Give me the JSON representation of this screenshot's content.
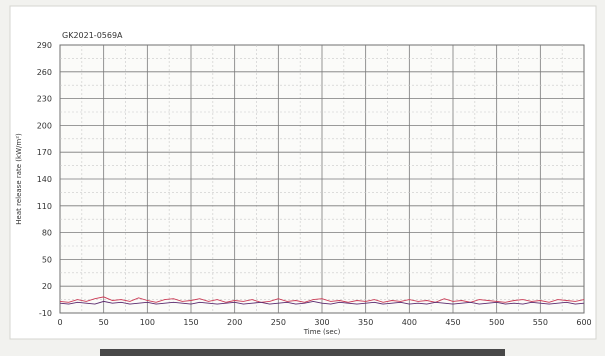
{
  "chart_data": {
    "type": "line",
    "title": "GK2021-0569A",
    "xlabel": "Time (sec)",
    "ylabel": "Heat release rate (kW/m²)",
    "xlim": [
      0,
      600
    ],
    "ylim": [
      -10,
      290
    ],
    "x_ticks": [
      "0",
      "50",
      "100",
      "150",
      "200",
      "250",
      "300",
      "350",
      "400",
      "450",
      "500",
      "550",
      "600"
    ],
    "y_ticks": [
      "290",
      "260",
      "230",
      "200",
      "170",
      "140",
      "110",
      "80",
      "50",
      "20",
      "-10"
    ],
    "grid": true,
    "series": [
      {
        "color": "#cc3a55",
        "x": [
          0,
          10,
          20,
          30,
          40,
          50,
          60,
          70,
          80,
          90,
          100,
          110,
          120,
          130,
          140,
          150,
          160,
          170,
          180,
          190,
          200,
          210,
          220,
          230,
          240,
          250,
          260,
          270,
          280,
          290,
          300,
          310,
          320,
          330,
          340,
          350,
          360,
          370,
          380,
          390,
          400,
          410,
          420,
          430,
          440,
          450,
          460,
          470,
          480,
          490,
          500,
          510,
          520,
          530,
          540,
          550,
          560,
          570,
          580,
          590,
          600
        ],
        "y": [
          3,
          2,
          5,
          3,
          6,
          8,
          4,
          5,
          3,
          7,
          4,
          2,
          5,
          6,
          3,
          4,
          6,
          3,
          5,
          2,
          4,
          3,
          5,
          2,
          3,
          6,
          3,
          4,
          2,
          5,
          6,
          3,
          4,
          2,
          4,
          3,
          5,
          2,
          4,
          3,
          5,
          3,
          4,
          2,
          6,
          3,
          4,
          2,
          5,
          4,
          3,
          2,
          4,
          5,
          3,
          4,
          2,
          5,
          4,
          3,
          5
        ]
      },
      {
        "color": "#5b2a6e",
        "x": [
          0,
          10,
          20,
          30,
          40,
          50,
          60,
          70,
          80,
          90,
          100,
          110,
          120,
          130,
          140,
          150,
          160,
          170,
          180,
          190,
          200,
          210,
          220,
          230,
          240,
          250,
          260,
          270,
          280,
          290,
          300,
          310,
          320,
          330,
          340,
          350,
          360,
          370,
          380,
          390,
          400,
          410,
          420,
          430,
          440,
          450,
          460,
          470,
          480,
          490,
          500,
          510,
          520,
          530,
          540,
          550,
          560,
          570,
          580,
          590,
          600
        ],
        "y": [
          1,
          0,
          2,
          1,
          0,
          3,
          1,
          2,
          0,
          1,
          2,
          0,
          1,
          2,
          1,
          0,
          2,
          1,
          0,
          1,
          2,
          0,
          1,
          2,
          0,
          1,
          2,
          0,
          1,
          3,
          1,
          0,
          2,
          1,
          0,
          1,
          2,
          0,
          1,
          2,
          0,
          1,
          0,
          2,
          1,
          0,
          1,
          2,
          0,
          1,
          2,
          0,
          1,
          0,
          2,
          1,
          0,
          1,
          2,
          0,
          1
        ]
      }
    ]
  }
}
